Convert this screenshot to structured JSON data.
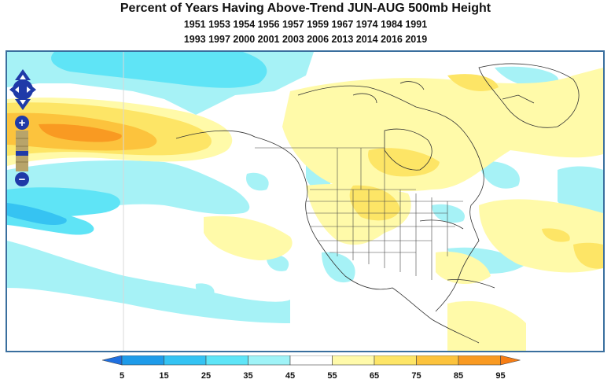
{
  "title": "Percent of Years Having Above-Trend JUN-AUG 500mb Height",
  "years_line1": "1951 1953 1954 1956 1957 1959 1967 1974 1984 1991",
  "years_line2": "1993 1997 2000 2001 2003 2006 2013 2014 2016 2019",
  "colorbar": {
    "ticks": [
      "5",
      "15",
      "25",
      "35",
      "45",
      "55",
      "65",
      "75",
      "85",
      "95"
    ],
    "colors": [
      "#1e9be9",
      "#34c3f3",
      "#5ee5f7",
      "#9ff3f7",
      "#ffffff",
      "#fffaaa",
      "#fde567",
      "#fcc33d",
      "#f99a22"
    ],
    "under_color": "#1e6fe0",
    "over_color": "#f77d13"
  },
  "map": {
    "zoom_in_label": "+",
    "zoom_out_label": "−",
    "pan_icon": "pan-arrows-icon"
  }
}
